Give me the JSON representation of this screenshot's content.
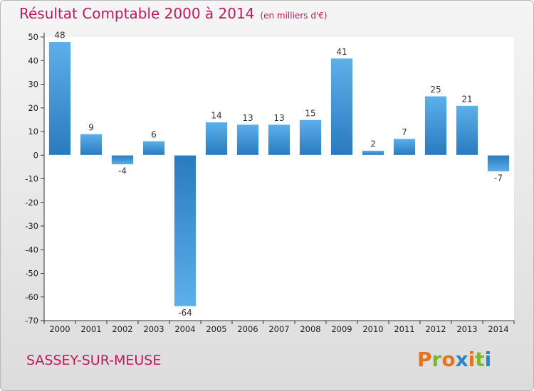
{
  "header": {
    "title": "Résultat Comptable 2000 à 2014",
    "unit": "(en milliers d'€)"
  },
  "footer": {
    "commune": "SASSEY-SUR-MEUSE",
    "logo": "Proxiti"
  },
  "colors": {
    "title": "#c2185b",
    "bar_dark": "#2a7abf",
    "bar_light": "#5cb0ea",
    "logo_letters": [
      "#e8731a",
      "#7ab829",
      "#e8731a",
      "#2a86c8",
      "#e8731a",
      "#7ab829",
      "#2a86c8"
    ]
  },
  "chart_data": {
    "type": "bar",
    "categories": [
      "2000",
      "2001",
      "2002",
      "2003",
      "2004",
      "2005",
      "2006",
      "2007",
      "2008",
      "2009",
      "2010",
      "2011",
      "2012",
      "2013",
      "2014"
    ],
    "values": [
      48,
      9,
      -4,
      6,
      -64,
      14,
      13,
      13,
      15,
      41,
      2,
      7,
      25,
      21,
      -7
    ],
    "ylim": [
      -70,
      50
    ],
    "yticks": [
      50,
      40,
      30,
      20,
      10,
      0,
      -10,
      -20,
      -30,
      -40,
      -50,
      -60,
      -70
    ],
    "grid": false
  }
}
